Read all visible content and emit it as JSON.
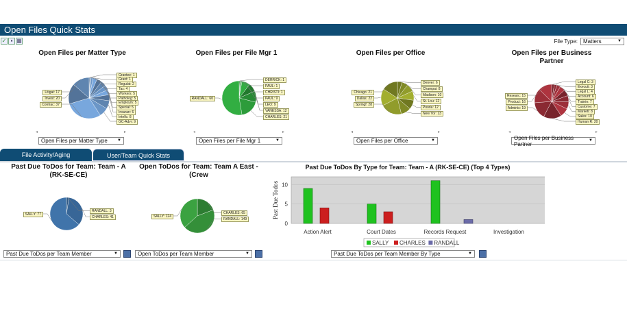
{
  "header": {
    "title": "Open Files Quick Stats"
  },
  "toolbar": {
    "icons": [
      "check-icon",
      "save-icon",
      "grid-icon"
    ]
  },
  "filetype": {
    "label": "File Type:",
    "value": "Matters"
  },
  "top_pies": [
    {
      "title": "Open Files per Matter Type",
      "color": "#6a94c4",
      "slices": [
        {
          "label": "Grantee: 1",
          "value": 1
        },
        {
          "label": "Grant: 1",
          "value": 1
        },
        {
          "label": "Regulat: 2",
          "value": 2
        },
        {
          "label": "Tax: 4",
          "value": 4
        },
        {
          "label": "Workers: 5",
          "value": 5
        },
        {
          "label": "Patholog: 5",
          "value": 5
        },
        {
          "label": "Employm: 5",
          "value": 5
        },
        {
          "label": "Special: 5",
          "value": 5
        },
        {
          "label": "Insuran: 6",
          "value": 6
        },
        {
          "label": "Intellc: 8",
          "value": 8
        },
        {
          "label": "GC-Advr: 9",
          "value": 9
        },
        {
          "label": "Contrac: 37",
          "value": 37
        },
        {
          "label": "Invest: 20",
          "value": 20
        },
        {
          "label": "Litigat: 17",
          "value": 17
        }
      ],
      "dropdown": "Open Files per Matter Type"
    },
    {
      "title": "Open Files per File Mgr 1",
      "color": "#2c9a3a",
      "slices": [
        {
          "label": "DERRICK: 1",
          "value": 1
        },
        {
          "label": "PAUL: 1",
          "value": 1
        },
        {
          "label": "CHRISTI: 1",
          "value": 1
        },
        {
          "label": "PAUL: 9",
          "value": 9
        },
        {
          "label": "LEO: 9",
          "value": 9
        },
        {
          "label": "VANESSA: 12",
          "value": 12
        },
        {
          "label": "CHARLES: 21",
          "value": 21
        },
        {
          "label": "RANDALL: 60",
          "value": 60
        }
      ],
      "dropdown": "Open Files per File Mgr 1"
    },
    {
      "title": "Open Files per Office",
      "color": "#8f9a2a",
      "slices": [
        {
          "label": "Denver: 6",
          "value": 6
        },
        {
          "label": "Champai: 8",
          "value": 8
        },
        {
          "label": "Madison: 10",
          "value": 10
        },
        {
          "label": "St. Lou: 12",
          "value": 12
        },
        {
          "label": "Pooria: 12",
          "value": 12
        },
        {
          "label": "New Yor: 13",
          "value": 13
        },
        {
          "label": "Springf: 28",
          "value": 28
        },
        {
          "label": "Dallas: 22",
          "value": 22
        },
        {
          "label": "Chicago: 21",
          "value": 21
        }
      ],
      "dropdown": "Open Files per Office"
    },
    {
      "title": "Open Files per Business Partner",
      "color": "#9a2e38",
      "slices": [
        {
          "label": "Legal C: 3",
          "value": 3
        },
        {
          "label": "Executi: 3",
          "value": 3
        },
        {
          "label": "Legal L: 4",
          "value": 4
        },
        {
          "label": "Account: 6",
          "value": 6
        },
        {
          "label": "Trainin: 7",
          "value": 7
        },
        {
          "label": "Custome: 7",
          "value": 7
        },
        {
          "label": "Marketi: 8",
          "value": 8
        },
        {
          "label": "Sales: 10",
          "value": 10
        },
        {
          "label": "Human R: 20",
          "value": 20
        },
        {
          "label": "Adminis: 19",
          "value": 19
        },
        {
          "label": "Product: 16",
          "value": 16
        },
        {
          "label": "Researc: 15",
          "value": 15
        }
      ],
      "dropdown": "Open Files per Business Partner"
    }
  ],
  "tabs": [
    {
      "label": "File Activity/Aging"
    },
    {
      "label": "User/Team Quick Stats"
    }
  ],
  "bottom_pies": [
    {
      "title": "Past Due ToDos for Team: Team - A (RK-SE-CE)",
      "color": "#3f72a8",
      "slices": [
        {
          "label": "RANDALL: 3",
          "value": 3
        },
        {
          "label": "CHARLES: 41",
          "value": 41
        },
        {
          "label": "SALLY: 77",
          "value": 77
        }
      ],
      "dropdown": "Past Due ToDos per Team Member"
    },
    {
      "title": "Open ToDos for Team: Team A East - (Crew",
      "color": "#3aa040",
      "slices": [
        {
          "label": "CHARLES: 65",
          "value": 65
        },
        {
          "label": "RANDALL: 149",
          "value": 149
        },
        {
          "label": "SALLY: 124",
          "value": 124
        }
      ],
      "dropdown": "Open ToDos per Team Member"
    }
  ],
  "chart_data": {
    "type": "bar",
    "title": "Past Due ToDos By Type for Team: Team - A (RK-SE-CE) (Top 4 Types)",
    "xlabel": "",
    "ylabel": "Past Due Todos",
    "categories": [
      "Action Alert",
      "Court Dates",
      "Records Request",
      "Investigation"
    ],
    "series": [
      {
        "name": "SALLY",
        "color": "#1fc21f",
        "values": [
          9,
          5,
          11,
          0
        ]
      },
      {
        "name": "CHARLES",
        "color": "#cc1f1f",
        "values": [
          4,
          3,
          0,
          0
        ]
      },
      {
        "name": "RANDALL",
        "color": "#6a6aa8",
        "values": [
          0,
          0,
          1,
          0
        ]
      }
    ],
    "ylim": [
      0,
      12
    ],
    "yticks": [
      0,
      5,
      10
    ],
    "grid": true,
    "legend": "bottom"
  },
  "bar_dropdown": "Past Due ToDos per Team Member By Type"
}
